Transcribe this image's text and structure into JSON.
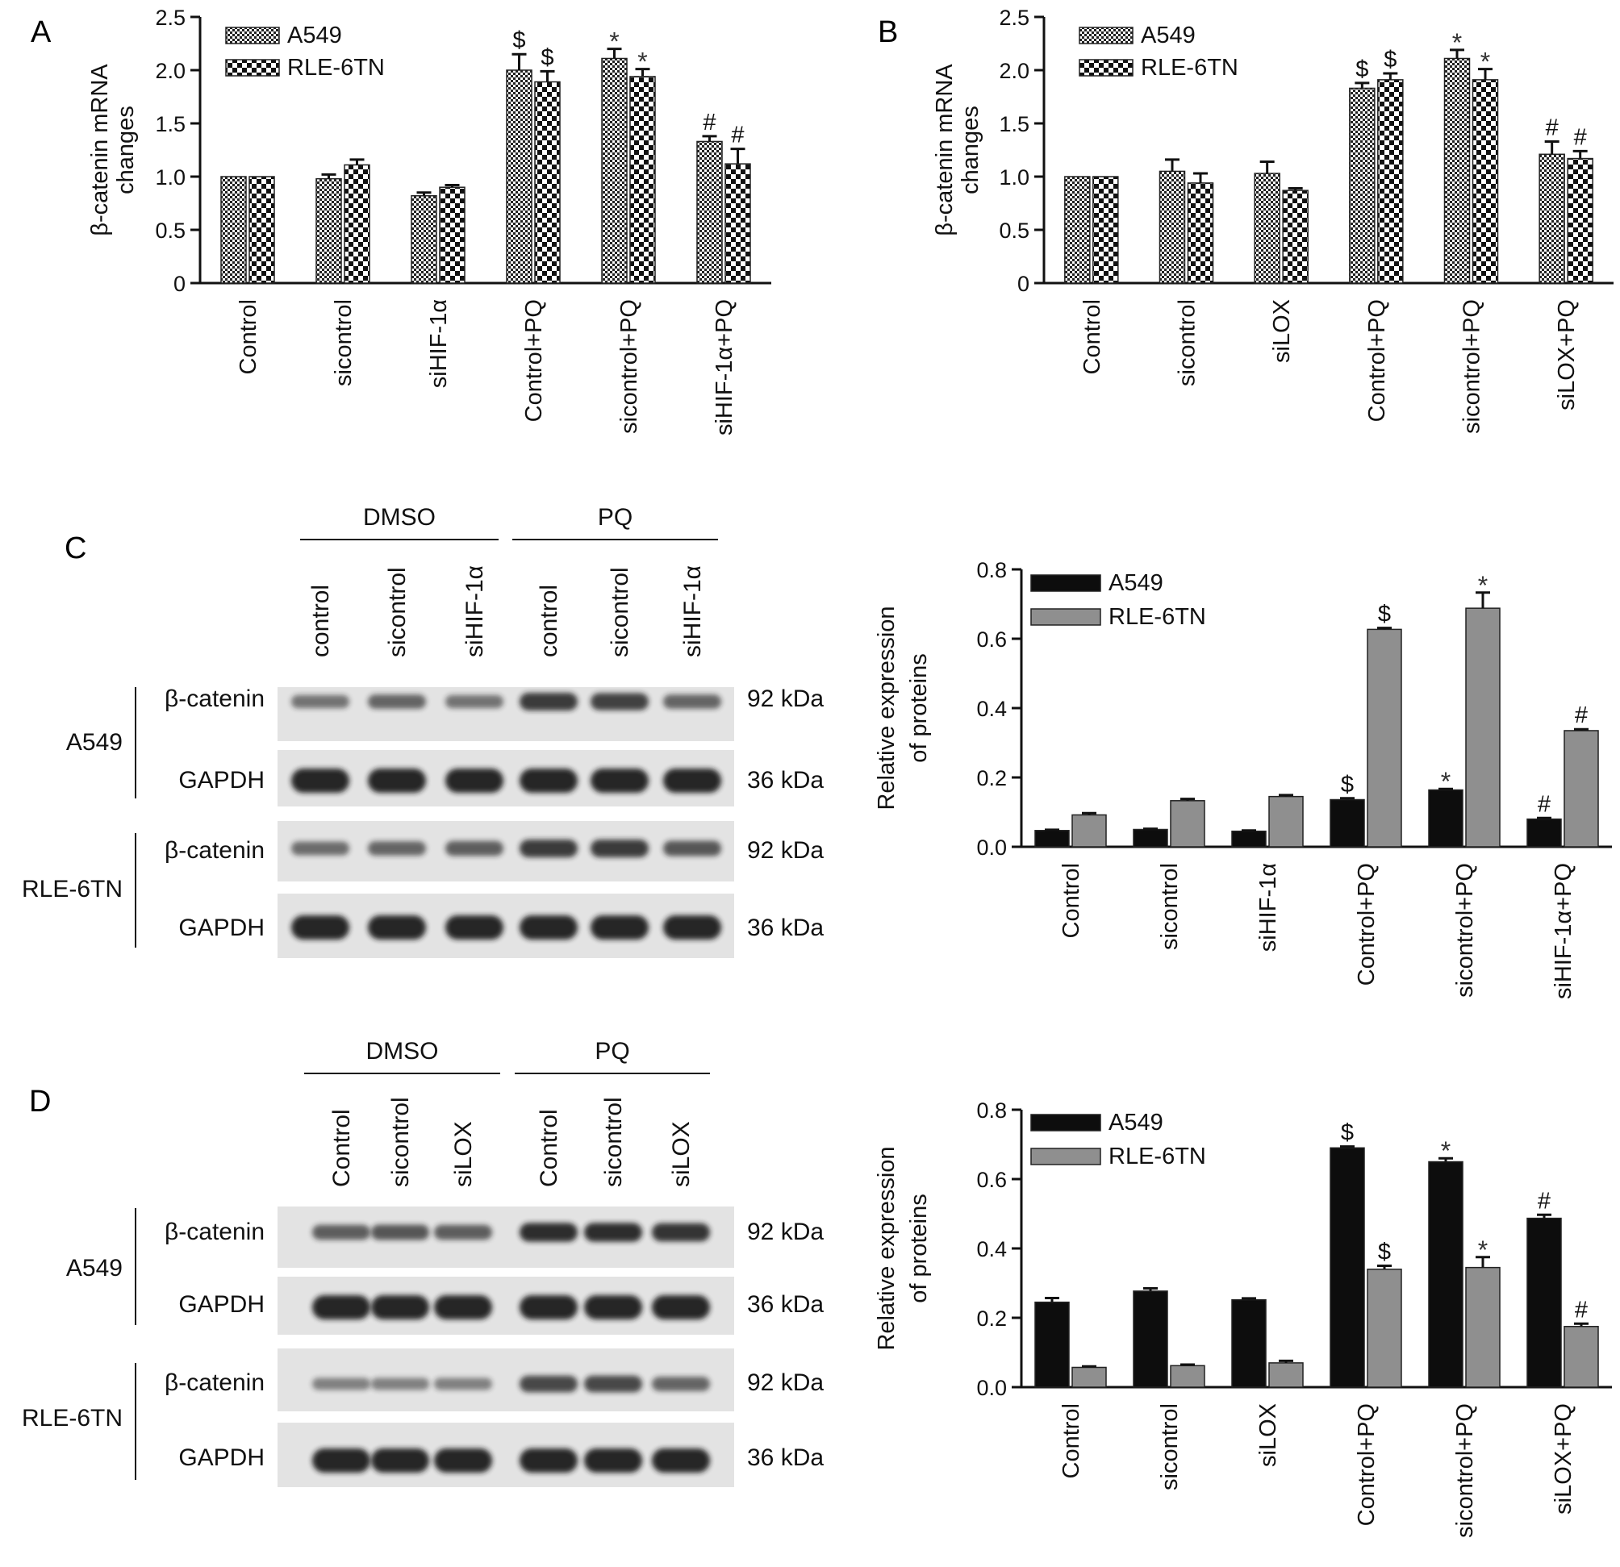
{
  "panels": {
    "A": "A",
    "B": "B",
    "C": "C",
    "D": "D"
  },
  "colors": {
    "ink": "#111111",
    "a549_bar": "#0d0d0d",
    "rle_bar": "#8f8f8f",
    "blot_bg": "#e3e3e3",
    "band": "#1a1a1a"
  },
  "chart_data": [
    {
      "id": "A",
      "type": "bar",
      "categories": [
        "Control",
        "sicontrol",
        "siHIF-1α",
        "Control+PQ",
        "sicontrol+PQ",
        "siHIF-1α+PQ"
      ],
      "series": [
        {
          "name": "A549",
          "pattern": "dense-check",
          "values": [
            1.0,
            0.98,
            0.82,
            2.0,
            2.11,
            1.33
          ],
          "errors": [
            0.0,
            0.04,
            0.03,
            0.15,
            0.09,
            0.05
          ],
          "labels": [
            "",
            "",
            "",
            "$",
            "*",
            "#"
          ]
        },
        {
          "name": "RLE-6TN",
          "pattern": "coarse-check",
          "values": [
            1.0,
            1.11,
            0.9,
            1.89,
            1.94,
            1.12
          ],
          "errors": [
            0.0,
            0.05,
            0.02,
            0.1,
            0.07,
            0.14
          ],
          "labels": [
            "",
            "",
            "",
            "$",
            "*",
            "#"
          ]
        }
      ],
      "ylabel": "β-catenin mRNA changes",
      "ylabel_lines": [
        "β-catenin mRNA",
        "changes"
      ],
      "ylim": [
        0,
        2.5
      ],
      "yticks": [
        "0",
        "0.5",
        "1.0",
        "1.5",
        "2.0",
        "2.5"
      ],
      "ytick_values": [
        0,
        0.5,
        1.0,
        1.5,
        2.0,
        2.5
      ],
      "legend": "top-left",
      "grid": false
    },
    {
      "id": "B",
      "type": "bar",
      "categories": [
        "Control",
        "sicontrol",
        "siLOX",
        "Control+PQ",
        "sicontrol+PQ",
        "siLOX+PQ"
      ],
      "series": [
        {
          "name": "A549",
          "pattern": "dense-check",
          "values": [
            1.0,
            1.05,
            1.03,
            1.83,
            2.11,
            1.21
          ],
          "errors": [
            0.0,
            0.11,
            0.11,
            0.05,
            0.08,
            0.12
          ],
          "labels": [
            "",
            "",
            "",
            "$",
            "*",
            "#"
          ]
        },
        {
          "name": "RLE-6TN",
          "pattern": "coarse-check",
          "values": [
            1.0,
            0.94,
            0.87,
            1.91,
            1.91,
            1.17
          ],
          "errors": [
            0.0,
            0.09,
            0.02,
            0.06,
            0.1,
            0.07
          ],
          "labels": [
            "",
            "",
            "",
            "$",
            "*",
            "#"
          ]
        }
      ],
      "ylabel": "β-catenin mRNA changes",
      "ylabel_lines": [
        "β-catenin mRNA",
        "changes"
      ],
      "ylim": [
        0,
        2.5
      ],
      "yticks": [
        "0",
        "0.5",
        "1.0",
        "1.5",
        "2.0",
        "2.5"
      ],
      "ytick_values": [
        0,
        0.5,
        1.0,
        1.5,
        2.0,
        2.5
      ],
      "legend": "top-left",
      "grid": false
    },
    {
      "id": "C",
      "type": "bar",
      "categories": [
        "Control",
        "sicontrol",
        "siHIF-1α",
        "Control+PQ",
        "sicontrol+PQ",
        "siHIF-1α+PQ"
      ],
      "series": [
        {
          "name": "A549",
          "pattern": "black",
          "values": [
            0.047,
            0.05,
            0.045,
            0.136,
            0.164,
            0.08
          ],
          "errors": [
            0.002,
            0.002,
            0.002,
            0.004,
            0.003,
            0.003
          ],
          "labels": [
            "",
            "",
            "",
            "$",
            "*",
            "#"
          ]
        },
        {
          "name": "RLE-6TN",
          "pattern": "gray",
          "values": [
            0.092,
            0.133,
            0.145,
            0.627,
            0.688,
            0.335
          ],
          "errors": [
            0.005,
            0.005,
            0.004,
            0.004,
            0.045,
            0.004
          ],
          "labels": [
            "",
            "",
            "",
            "$",
            "*",
            "#"
          ]
        }
      ],
      "ylabel": "Relative expression of proteins",
      "ylabel_lines": [
        "Relative expression",
        "of proteins"
      ],
      "ylim": [
        0,
        0.8
      ],
      "yticks": [
        "0.0",
        "0.2",
        "0.4",
        "0.6",
        "0.8"
      ],
      "ytick_values": [
        0,
        0.2,
        0.4,
        0.6,
        0.8
      ],
      "legend": "top-left",
      "grid": false
    },
    {
      "id": "D",
      "type": "bar",
      "categories": [
        "Control",
        "sicontrol",
        "siLOX",
        "Control+PQ",
        "sicontrol+PQ",
        "siLOX+PQ"
      ],
      "series": [
        {
          "name": "A549",
          "pattern": "black",
          "values": [
            0.245,
            0.277,
            0.252,
            0.69,
            0.65,
            0.487
          ],
          "errors": [
            0.012,
            0.008,
            0.004,
            0.004,
            0.01,
            0.01
          ],
          "labels": [
            "",
            "",
            "",
            "$",
            "*",
            "#"
          ]
        },
        {
          "name": "RLE-6TN",
          "pattern": "gray",
          "values": [
            0.057,
            0.062,
            0.07,
            0.34,
            0.345,
            0.175
          ],
          "errors": [
            0.003,
            0.003,
            0.006,
            0.01,
            0.03,
            0.008
          ],
          "labels": [
            "",
            "",
            "",
            "$",
            "*",
            "#"
          ]
        }
      ],
      "ylabel": "Relative expression of proteins",
      "ylabel_lines": [
        "Relative expression",
        "of proteins"
      ],
      "ylim": [
        0,
        0.8
      ],
      "yticks": [
        "0.0",
        "0.2",
        "0.4",
        "0.6",
        "0.8"
      ],
      "ytick_values": [
        0,
        0.2,
        0.4,
        0.6,
        0.8
      ],
      "legend": "top-left",
      "grid": false
    }
  ],
  "blots": [
    {
      "id": "C",
      "groups": [
        "DMSO",
        "PQ"
      ],
      "lanes": [
        "control",
        "sicontrol",
        "siHIF-1α",
        "control",
        "sicontrol",
        "siHIF-1α"
      ],
      "cell_lines": [
        "A549",
        "RLE-6TN"
      ],
      "rows": [
        {
          "protein": "β-catenin",
          "size": "92 kDa",
          "intensity": [
            0.45,
            0.55,
            0.45,
            0.85,
            0.8,
            0.55
          ]
        },
        {
          "protein": "GAPDH",
          "size": "36 kDa",
          "intensity": [
            1,
            1,
            1,
            1,
            1,
            1
          ]
        },
        {
          "protein": "β-catenin",
          "size": "92 kDa",
          "intensity": [
            0.5,
            0.55,
            0.6,
            0.85,
            0.85,
            0.65
          ]
        },
        {
          "protein": "GAPDH",
          "size": "36 kDa",
          "intensity": [
            1,
            1,
            1,
            1,
            1,
            1
          ]
        }
      ]
    },
    {
      "id": "D",
      "groups": [
        "DMSO",
        "PQ"
      ],
      "lanes": [
        "Control",
        "sicontrol",
        "siLOX",
        "Control",
        "sicontrol",
        "siLOX"
      ],
      "cell_lines": [
        "A549",
        "RLE-6TN"
      ],
      "rows": [
        {
          "protein": "β-catenin",
          "size": "92 kDa",
          "intensity": [
            0.6,
            0.65,
            0.6,
            0.95,
            0.95,
            0.9
          ]
        },
        {
          "protein": "GAPDH",
          "size": "36 kDa",
          "intensity": [
            1,
            1,
            1,
            1,
            1,
            1
          ]
        },
        {
          "protein": "β-catenin",
          "size": "92 kDa",
          "intensity": [
            0.35,
            0.35,
            0.35,
            0.75,
            0.75,
            0.55
          ]
        },
        {
          "protein": "GAPDH",
          "size": "36 kDa",
          "intensity": [
            1,
            1,
            1,
            1,
            1,
            1
          ]
        }
      ]
    }
  ]
}
